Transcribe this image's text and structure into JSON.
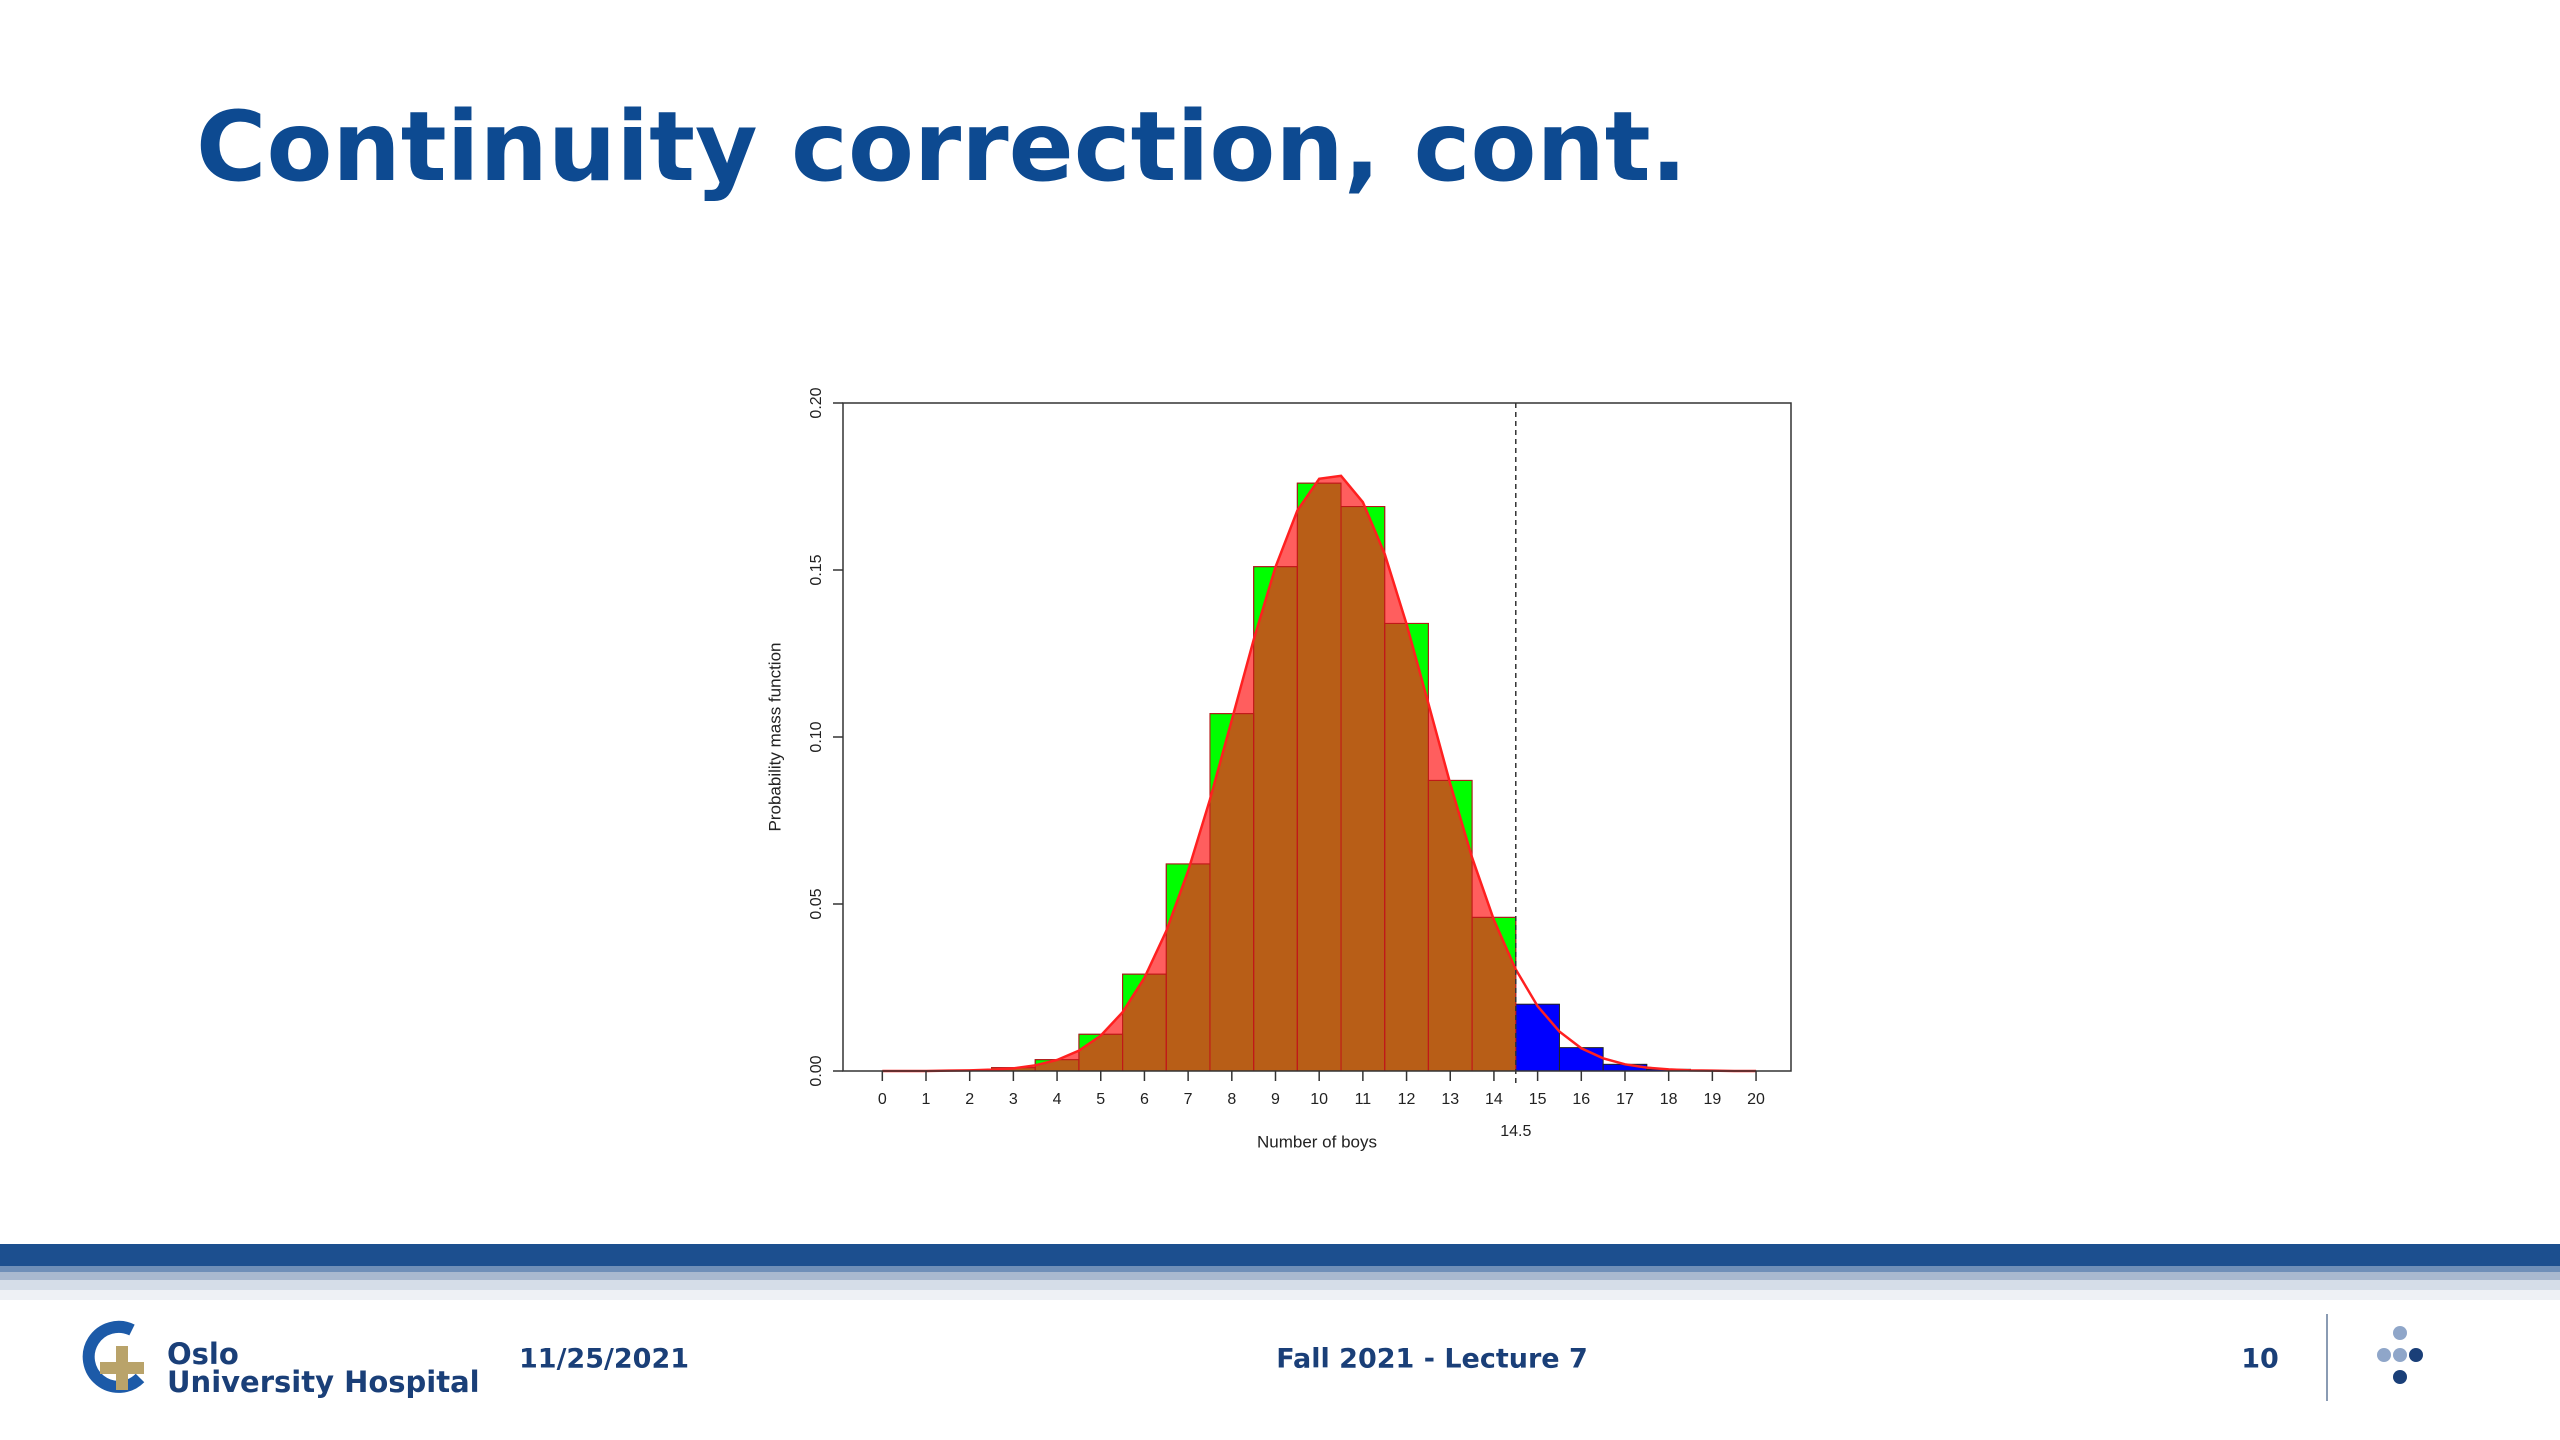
{
  "header": {
    "title": "Continuity correction, cont."
  },
  "chart_data": {
    "type": "bar",
    "x_label": "Number of boys",
    "y_label": "Probability mass function",
    "x": [
      0,
      1,
      2,
      3,
      4,
      5,
      6,
      7,
      8,
      9,
      10,
      11,
      12,
      13,
      14,
      15,
      16,
      17,
      18,
      19,
      20
    ],
    "values": [
      0,
      0,
      0.0003,
      0.001,
      0.0034,
      0.011,
      0.029,
      0.062,
      0.107,
      0.151,
      0.176,
      0.169,
      0.134,
      0.087,
      0.046,
      0.02,
      0.007,
      0.002,
      0.0005,
      0.0001,
      0
    ],
    "bar_color": "#00ff00",
    "tail_color": "#0000ff",
    "threshold": 14.5,
    "curve": {
      "color": "#ff2020",
      "x": [
        0,
        0.5,
        1,
        1.5,
        2,
        2.5,
        3,
        3.5,
        4,
        4.5,
        5,
        5.5,
        6,
        6.5,
        7,
        7.5,
        8,
        8.5,
        9,
        9.5,
        10,
        10.5,
        11,
        11.5,
        12,
        12.5,
        13,
        13.5,
        14,
        14.5,
        15,
        15.5,
        16,
        16.5,
        17,
        17.5,
        18,
        18.5,
        19,
        19.5,
        20
      ],
      "values": [
        0,
        0,
        0,
        0.0001,
        0.0002,
        0.0004,
        0.0008,
        0.0017,
        0.0033,
        0.0061,
        0.0106,
        0.0176,
        0.0279,
        0.0419,
        0.0599,
        0.0813,
        0.1051,
        0.1291,
        0.1509,
        0.1678,
        0.1773,
        0.1782,
        0.1703,
        0.1548,
        0.1338,
        0.11,
        0.086,
        0.0639,
        0.0452,
        0.0304,
        0.0194,
        0.0118,
        0.0068,
        0.0038,
        0.002,
        0.001,
        0.0005,
        0.0002,
        0.0001,
        0,
        0
      ]
    },
    "xlim": [
      -0.9,
      20.8
    ],
    "ylim": [
      0,
      0.2
    ],
    "xticks": [
      0,
      1,
      2,
      3,
      4,
      5,
      6,
      7,
      8,
      9,
      10,
      11,
      12,
      13,
      14,
      15,
      16,
      17,
      18,
      19,
      20
    ],
    "yticks": [
      {
        "value": 0,
        "label": "0.00"
      },
      {
        "value": 0.05,
        "label": "0.05"
      },
      {
        "value": 0.1,
        "label": "0.10"
      },
      {
        "value": 0.15,
        "label": "0.15"
      },
      {
        "value": 0.2,
        "label": "0.20"
      }
    ]
  },
  "footer": {
    "logo": [
      "Oslo",
      "University Hospital"
    ],
    "date": "11/25/2021",
    "course": "Fall 2021 - Lecture 7",
    "page": "10"
  }
}
